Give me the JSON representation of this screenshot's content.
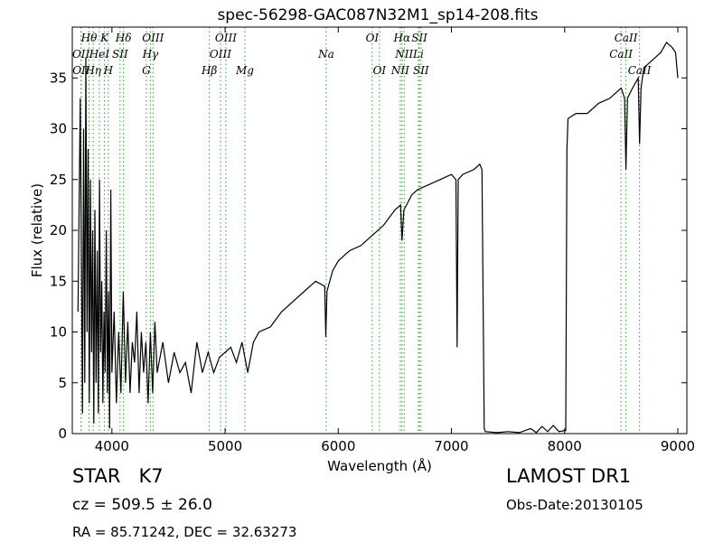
{
  "chart_data": {
    "type": "line",
    "title": "spec-56298-GAC087N32M1_sp14-208.fits",
    "x_label": "Wavelength (Å)",
    "y_label": "Flux (relative)",
    "color": "#000000",
    "xlim": [
      3650,
      9080
    ],
    "ylim": [
      0,
      40
    ],
    "xticks": [
      4000,
      5000,
      6000,
      7000,
      8000,
      9000
    ],
    "yticks": [
      0,
      5,
      10,
      15,
      20,
      25,
      30,
      35
    ],
    "x": [
      3700,
      3720,
      3740,
      3750,
      3760,
      3770,
      3780,
      3790,
      3800,
      3810,
      3820,
      3830,
      3840,
      3850,
      3860,
      3870,
      3880,
      3890,
      3900,
      3910,
      3920,
      3930,
      3940,
      3950,
      3960,
      3970,
      3980,
      3990,
      4000,
      4020,
      4040,
      4060,
      4080,
      4100,
      4120,
      4140,
      4160,
      4180,
      4200,
      4220,
      4240,
      4260,
      4280,
      4300,
      4320,
      4340,
      4360,
      4380,
      4400,
      4450,
      4500,
      4550,
      4600,
      4650,
      4700,
      4750,
      4800,
      4850,
      4900,
      4950,
      5000,
      5050,
      5100,
      5150,
      5200,
      5250,
      5300,
      5400,
      5500,
      5600,
      5700,
      5800,
      5880,
      5890,
      5900,
      5950,
      6000,
      6100,
      6200,
      6300,
      6400,
      6500,
      6550,
      6563,
      6580,
      6650,
      6700,
      6800,
      6900,
      7000,
      7040,
      7050,
      7060,
      7100,
      7200,
      7250,
      7270,
      7290,
      7300,
      7400,
      7500,
      7600,
      7700,
      7750,
      7800,
      7850,
      7900,
      7950,
      8000,
      8010,
      8020,
      8030,
      8100,
      8200,
      8300,
      8400,
      8450,
      8500,
      8530,
      8542,
      8555,
      8600,
      8650,
      8662,
      8675,
      8700,
      8750,
      8800,
      8850,
      8900,
      8950,
      8980,
      9000
    ],
    "values": [
      12,
      33,
      2,
      30,
      5,
      37,
      10,
      28,
      3,
      25,
      8,
      20,
      1,
      22,
      5,
      18,
      2,
      25,
      8,
      15,
      3,
      12,
      6,
      20,
      4,
      14,
      0.5,
      24,
      6,
      12,
      3,
      10,
      4,
      14,
      5,
      11,
      4,
      9,
      7,
      12,
      4,
      10,
      6,
      9,
      3,
      10,
      4,
      11,
      6,
      9,
      5,
      8,
      6,
      7,
      4,
      9,
      6,
      8,
      6,
      7.5,
      8,
      8.5,
      7,
      9,
      6,
      9,
      10,
      10.5,
      12,
      13,
      14,
      15,
      14.5,
      9.5,
      14,
      16,
      17,
      18,
      18.5,
      19.5,
      20.5,
      22,
      22.5,
      19,
      22,
      23.5,
      24,
      24.5,
      25,
      25.5,
      25,
      8.5,
      25,
      25.5,
      26,
      26.5,
      26,
      0.5,
      0.2,
      0.1,
      0.2,
      0.1,
      0.5,
      0.1,
      0.7,
      0.2,
      0.8,
      0.2,
      0.3,
      0.3,
      28,
      31,
      31.5,
      31.5,
      32.5,
      33,
      33.5,
      34,
      33,
      26,
      33,
      34,
      35,
      28.5,
      34,
      36,
      36.5,
      37,
      37.5,
      38.5,
      38,
      37.5,
      35
    ],
    "line_color": "#2ca02c",
    "annotations": [
      {
        "x": 3727,
        "label": "OII"
      },
      {
        "x": 3729,
        "label": "OII"
      },
      {
        "x": 3798,
        "label": "Hθ"
      },
      {
        "x": 3835,
        "label": "Hη"
      },
      {
        "x": 3889,
        "label": "HeI"
      },
      {
        "x": 3934,
        "label": "K"
      },
      {
        "x": 3968,
        "label": "H"
      },
      {
        "x": 4072,
        "label": "SII"
      },
      {
        "x": 4102,
        "label": "Hδ"
      },
      {
        "x": 4304,
        "label": "G"
      },
      {
        "x": 4340,
        "label": "Hγ"
      },
      {
        "x": 4363,
        "label": "OIII"
      },
      {
        "x": 4861,
        "label": "Hβ"
      },
      {
        "x": 4959,
        "label": "OIII"
      },
      {
        "x": 5007,
        "label": "OIII"
      },
      {
        "x": 5175,
        "label": "Mg"
      },
      {
        "x": 5893,
        "label": "Na"
      },
      {
        "x": 6300,
        "label": "OI"
      },
      {
        "x": 6364,
        "label": "OI"
      },
      {
        "x": 6548,
        "label": "NII"
      },
      {
        "x": 6563,
        "label": "Hα"
      },
      {
        "x": 6583,
        "label": "NII"
      },
      {
        "x": 6708,
        "label": "Li"
      },
      {
        "x": 6717,
        "label": "SII"
      },
      {
        "x": 6731,
        "label": "SII"
      },
      {
        "x": 8498,
        "label": "CaII"
      },
      {
        "x": 8542,
        "label": "CaII"
      },
      {
        "x": 8662,
        "label": "CaII"
      }
    ],
    "footer": {
      "object": "STAR   K7",
      "cz": "cz = 509.5 ± 26.0",
      "coords": "RA = 85.71242, DEC = 32.63273",
      "survey": "LAMOST DR1",
      "obs_date": "Obs-Date:20130105"
    }
  }
}
